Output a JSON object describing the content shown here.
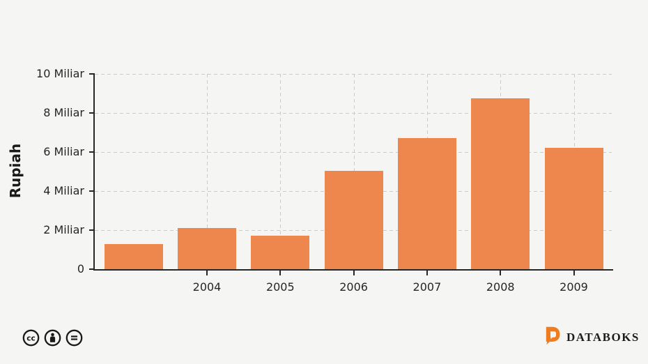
{
  "chart_data": {
    "type": "bar",
    "title": "",
    "xlabel": "",
    "ylabel": "Rupiah",
    "categories": [
      "",
      "2004",
      "2005",
      "2006",
      "2007",
      "2008",
      "2009"
    ],
    "values": [
      1.3,
      2.1,
      1.7,
      5.05,
      6.7,
      8.75,
      6.2
    ],
    "ylim": [
      0,
      10
    ],
    "yticks": [
      "0",
      "2 Miliar",
      "4 Miliar",
      "6 Miliar",
      "8 Miliar",
      "10 Miliar"
    ],
    "grid": true,
    "legend_position": "none",
    "bar_color": "#EE874D"
  },
  "footer": {
    "license_icons": [
      "cc-icon",
      "attribution-icon",
      "no-derivatives-icon"
    ],
    "brand": "DATABOKS"
  },
  "colors": {
    "background": "#F5F5F4",
    "bar": "#EE874D",
    "axis": "#262626",
    "grid": "#CBCBCB",
    "brand_orange": "#EE7D22",
    "brand_text": "#1D1D1B"
  }
}
